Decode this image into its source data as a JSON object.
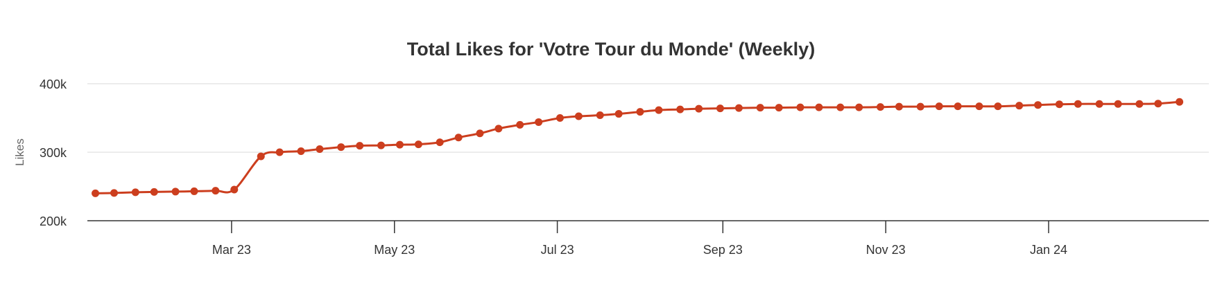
{
  "chart_data": {
    "type": "line",
    "title": "Total Likes for 'Votre Tour du Monde' (Weekly)",
    "xlabel": "",
    "ylabel": "Likes",
    "ylim": [
      200000,
      400000
    ],
    "y_ticks": [
      {
        "value": 200000,
        "label": "200k"
      },
      {
        "value": 300000,
        "label": "300k"
      },
      {
        "value": 400000,
        "label": "400k"
      }
    ],
    "x_range": [
      "2023-01-06",
      "2024-03-01"
    ],
    "x_ticks": [
      {
        "date": "2023-03-01",
        "label": "Mar 23"
      },
      {
        "date": "2023-05-01",
        "label": "May 23"
      },
      {
        "date": "2023-07-01",
        "label": "Jul 23"
      },
      {
        "date": "2023-09-01",
        "label": "Sep 23"
      },
      {
        "date": "2023-11-01",
        "label": "Nov 23"
      },
      {
        "date": "2024-01-01",
        "label": "Jan 24"
      }
    ],
    "grid": true,
    "legend": "none",
    "colors": {
      "line": "#cc3e1e",
      "grid": "#e6e6e6",
      "axis": "#333333"
    },
    "series": [
      {
        "x": [
          "2023-01-09",
          "2023-01-16",
          "2023-01-24",
          "2023-01-31",
          "2023-02-08",
          "2023-02-15",
          "2023-02-23",
          "2023-03-02",
          "2023-03-12",
          "2023-03-19",
          "2023-03-27",
          "2023-04-03",
          "2023-04-11",
          "2023-04-18",
          "2023-04-26",
          "2023-05-03",
          "2023-05-10",
          "2023-05-18",
          "2023-05-25",
          "2023-06-02",
          "2023-06-09",
          "2023-06-17",
          "2023-06-24",
          "2023-07-02",
          "2023-07-09",
          "2023-07-17",
          "2023-07-24",
          "2023-08-01",
          "2023-08-08",
          "2023-08-16",
          "2023-08-23",
          "2023-08-31",
          "2023-09-07",
          "2023-09-15",
          "2023-09-22",
          "2023-09-30",
          "2023-10-07",
          "2023-10-15",
          "2023-10-22",
          "2023-10-30",
          "2023-11-06",
          "2023-11-14",
          "2023-11-21",
          "2023-11-28",
          "2023-12-06",
          "2023-12-13",
          "2023-12-21",
          "2023-12-28",
          "2024-01-05",
          "2024-01-12",
          "2024-01-20",
          "2024-01-27",
          "2024-02-04",
          "2024-02-11",
          "2024-02-19"
        ],
        "values": [
          240000,
          240500,
          241500,
          242000,
          242500,
          243000,
          243800,
          245500,
          294000,
          300000,
          301500,
          304500,
          307500,
          309500,
          310000,
          311000,
          311500,
          314500,
          321500,
          327500,
          334500,
          340000,
          344000,
          350000,
          352500,
          354000,
          356000,
          359000,
          361500,
          362500,
          363500,
          364000,
          364500,
          365000,
          365000,
          365500,
          365500,
          365500,
          365500,
          366000,
          366500,
          366500,
          367000,
          367000,
          367000,
          367000,
          368000,
          369000,
          370000,
          370500,
          370500,
          370500,
          370500,
          371000,
          373500
        ]
      }
    ]
  }
}
